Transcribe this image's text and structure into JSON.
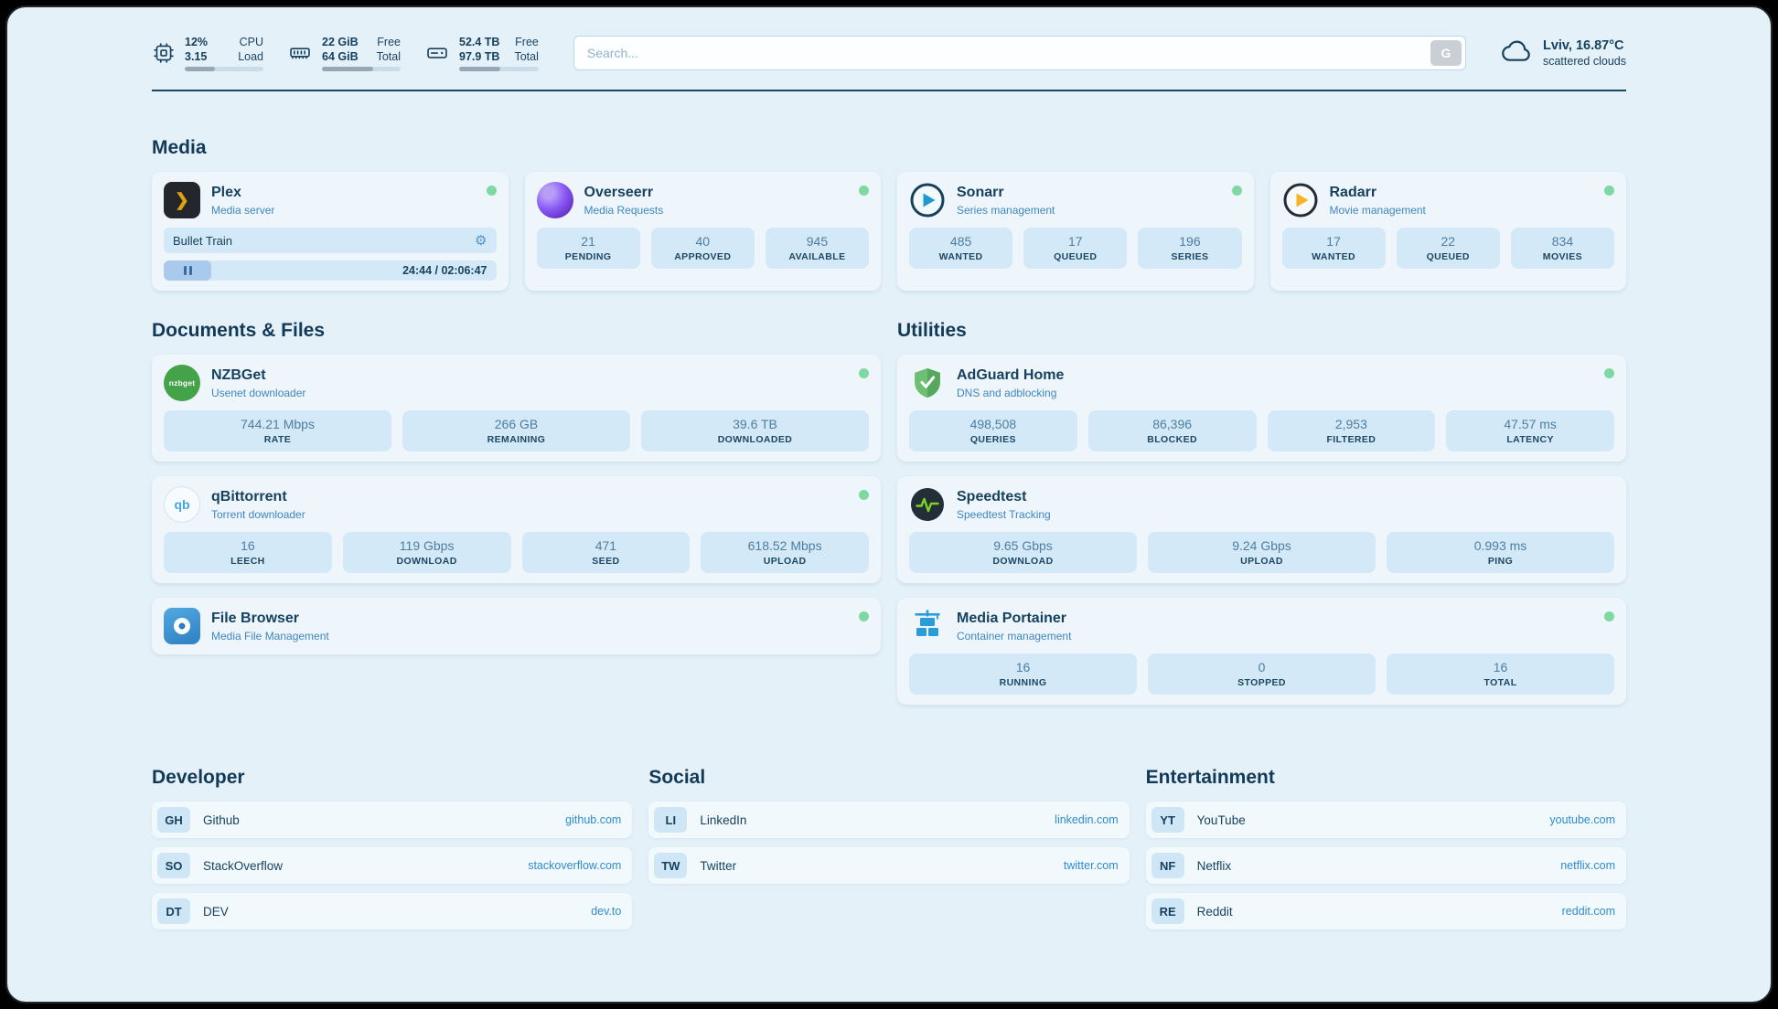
{
  "theme": {
    "background": "#e4f1f9",
    "card": "#eef6fc",
    "stat_box": "#d3e9f8",
    "text_primary": "#16425f",
    "text_link": "#2f8ccc",
    "status_online": "#7ed8a3"
  },
  "header": {
    "cpu": {
      "value_top": "12%",
      "value_bottom": "3.15",
      "label_top": "CPU",
      "label_bottom": "Load",
      "bar_percent": 38
    },
    "ram": {
      "value_top": "22 GiB",
      "value_bottom": "64 GiB",
      "label_top": "Free",
      "label_bottom": "Total",
      "bar_percent": 65
    },
    "disk": {
      "value_top": "52.4 TB",
      "value_bottom": "97.9 TB",
      "label_top": "Free",
      "label_bottom": "Total",
      "bar_percent": 52
    },
    "search": {
      "placeholder": "Search...",
      "button_label": "G"
    },
    "weather": {
      "location": "Lviv, 16.87°C",
      "condition": "scattered clouds"
    }
  },
  "media": {
    "title": "Media",
    "plex": {
      "name": "Plex",
      "subtitle": "Media server",
      "now_playing": "Bullet Train",
      "time": "24:44 / 02:06:47"
    },
    "overseerr": {
      "name": "Overseerr",
      "subtitle": "Media Requests",
      "stats": [
        {
          "value": "21",
          "label": "PENDING"
        },
        {
          "value": "40",
          "label": "APPROVED"
        },
        {
          "value": "945",
          "label": "AVAILABLE"
        }
      ]
    },
    "sonarr": {
      "name": "Sonarr",
      "subtitle": "Series management",
      "stats": [
        {
          "value": "485",
          "label": "WANTED"
        },
        {
          "value": "17",
          "label": "QUEUED"
        },
        {
          "value": "196",
          "label": "SERIES"
        }
      ]
    },
    "radarr": {
      "name": "Radarr",
      "subtitle": "Movie management",
      "stats": [
        {
          "value": "17",
          "label": "WANTED"
        },
        {
          "value": "22",
          "label": "QUEUED"
        },
        {
          "value": "834",
          "label": "MOVIES"
        }
      ]
    }
  },
  "documents": {
    "title": "Documents & Files",
    "nzbget": {
      "name": "NZBGet",
      "subtitle": "Usenet downloader",
      "icon_text": "nzbget",
      "stats": [
        {
          "value": "744.21 Mbps",
          "label": "RATE"
        },
        {
          "value": "266 GB",
          "label": "REMAINING"
        },
        {
          "value": "39.6 TB",
          "label": "DOWNLOADED"
        }
      ]
    },
    "qbittorrent": {
      "name": "qBittorrent",
      "subtitle": "Torrent downloader",
      "icon_text": "qb",
      "stats": [
        {
          "value": "16",
          "label": "LEECH"
        },
        {
          "value": "119 Gbps",
          "label": "DOWNLOAD"
        },
        {
          "value": "471",
          "label": "SEED"
        },
        {
          "value": "618.52 Mbps",
          "label": "UPLOAD"
        }
      ]
    },
    "filebrowser": {
      "name": "File Browser",
      "subtitle": "Media File Management"
    }
  },
  "utilities": {
    "title": "Utilities",
    "adguard": {
      "name": "AdGuard Home",
      "subtitle": "DNS and adblocking",
      "stats": [
        {
          "value": "498,508",
          "label": "QUERIES"
        },
        {
          "value": "86,396",
          "label": "BLOCKED"
        },
        {
          "value": "2,953",
          "label": "FILTERED"
        },
        {
          "value": "47.57 ms",
          "label": "LATENCY"
        }
      ]
    },
    "speedtest": {
      "name": "Speedtest",
      "subtitle": "Speedtest Tracking",
      "stats": [
        {
          "value": "9.65 Gbps",
          "label": "DOWNLOAD"
        },
        {
          "value": "9.24 Gbps",
          "label": "UPLOAD"
        },
        {
          "value": "0.993 ms",
          "label": "PING"
        }
      ]
    },
    "portainer": {
      "name": "Media Portainer",
      "subtitle": "Container management",
      "stats": [
        {
          "value": "16",
          "label": "RUNNING"
        },
        {
          "value": "0",
          "label": "STOPPED"
        },
        {
          "value": "16",
          "label": "TOTAL"
        }
      ]
    }
  },
  "bookmarks": [
    {
      "title": "Developer",
      "items": [
        {
          "abbr": "GH",
          "name": "Github",
          "link": "github.com"
        },
        {
          "abbr": "SO",
          "name": "StackOverflow",
          "link": "stackoverflow.com"
        },
        {
          "abbr": "DT",
          "name": "DEV",
          "link": "dev.to"
        }
      ]
    },
    {
      "title": "Social",
      "items": [
        {
          "abbr": "LI",
          "name": "LinkedIn",
          "link": "linkedin.com"
        },
        {
          "abbr": "TW",
          "name": "Twitter",
          "link": "twitter.com"
        }
      ]
    },
    {
      "title": "Entertainment",
      "items": [
        {
          "abbr": "YT",
          "name": "YouTube",
          "link": "youtube.com"
        },
        {
          "abbr": "NF",
          "name": "Netflix",
          "link": "netflix.com"
        },
        {
          "abbr": "RE",
          "name": "Reddit",
          "link": "reddit.com"
        }
      ]
    }
  ]
}
